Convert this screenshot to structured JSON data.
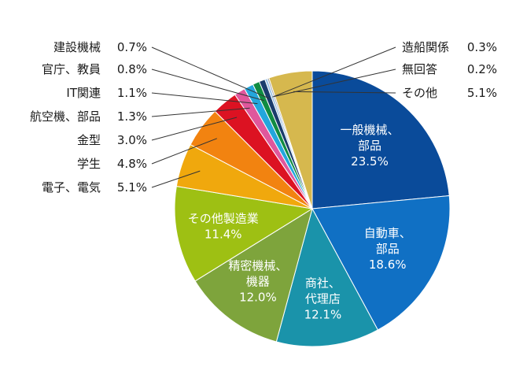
{
  "chart_data": {
    "type": "pie",
    "title": "",
    "start": "top",
    "direction": "clockwise",
    "slices": [
      {
        "label": "一般機械、部品",
        "lines": [
          "一般機械、",
          "部品"
        ],
        "value": 23.5,
        "value_text": "23.5%",
        "color": "#0a4b9a",
        "label_position": "inside"
      },
      {
        "label": "自動車、部品",
        "lines": [
          "自動車、",
          "部品"
        ],
        "value": 18.6,
        "value_text": "18.6%",
        "color": "#1070c4",
        "label_position": "inside"
      },
      {
        "label": "商社、代理店",
        "lines": [
          "商社、",
          "代理店"
        ],
        "value": 12.1,
        "value_text": "12.1%",
        "color": "#1a93aa",
        "label_position": "inside"
      },
      {
        "label": "精密機械、機器",
        "lines": [
          "精密機械、",
          "機器"
        ],
        "value": 12.0,
        "value_text": "12.0%",
        "color": "#7ea43c",
        "label_position": "inside"
      },
      {
        "label": "その他製造業",
        "lines": [
          "その他製造業"
        ],
        "value": 11.4,
        "value_text": "11.4%",
        "color": "#9ec013",
        "label_position": "inside"
      },
      {
        "label": "電子、電気",
        "value": 5.1,
        "value_text": "5.1%",
        "color": "#f0a80d",
        "label_position": "outside-left"
      },
      {
        "label": "学生",
        "value": 4.8,
        "value_text": "4.8%",
        "color": "#f28310",
        "label_position": "outside-left"
      },
      {
        "label": "金型",
        "value": 3.0,
        "value_text": "3.0%",
        "color": "#dc1222",
        "label_position": "outside-left"
      },
      {
        "label": "航空機、部品",
        "value": 1.3,
        "value_text": "1.3%",
        "color": "#e0579c",
        "label_position": "outside-left"
      },
      {
        "label": "IT関連",
        "value": 1.1,
        "value_text": "1.1%",
        "color": "#23a6dc",
        "label_position": "outside-left"
      },
      {
        "label": "官庁、教員",
        "value": 0.8,
        "value_text": "0.8%",
        "color": "#108c42",
        "label_position": "outside-left"
      },
      {
        "label": "建設機械",
        "value": 0.7,
        "value_text": "0.7%",
        "color": "#1a3c6c",
        "label_position": "outside-left"
      },
      {
        "label": "造船関係",
        "value": 0.3,
        "value_text": "0.3%",
        "color": "#9dc3e6",
        "label_position": "outside-right"
      },
      {
        "label": "無回答",
        "value": 0.2,
        "value_text": "0.2%",
        "color": "#a5a5a5",
        "label_position": "outside-right"
      },
      {
        "label": "その他",
        "value": 5.1,
        "value_text": "5.1%",
        "color": "#d6b84e",
        "label_position": "outside-right"
      }
    ]
  }
}
